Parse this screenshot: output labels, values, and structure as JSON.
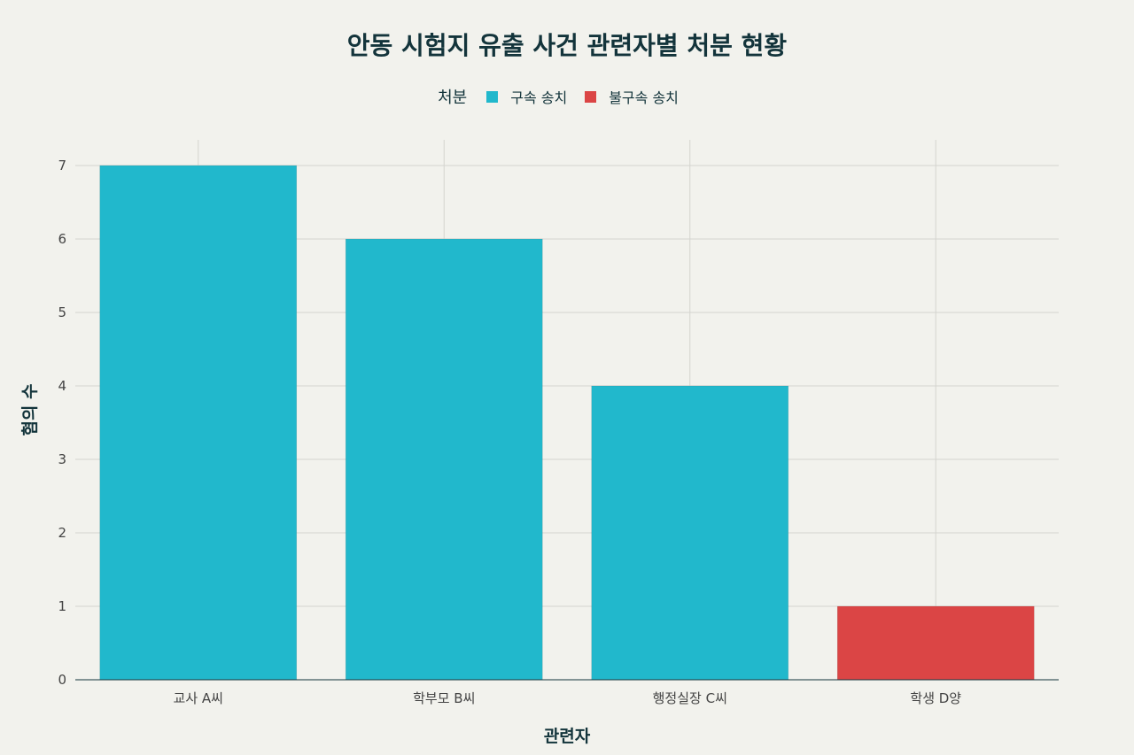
{
  "chart_data": {
    "type": "bar",
    "title": "안동 시험지 유출 사건 관련자별 처분 현황",
    "xlabel": "관련자",
    "ylabel": "혐의 수",
    "categories": [
      "교사 A씨",
      "학부모 B씨",
      "행정실장 C씨",
      "학생 D양"
    ],
    "values": [
      7,
      6,
      4,
      1
    ],
    "bar_groups": [
      "구속 송치",
      "구속 송치",
      "구속 송치",
      "불구속 송치"
    ],
    "ylim": [
      0,
      7.35
    ],
    "yticks": [
      0,
      1,
      2,
      3,
      4,
      5,
      6,
      7
    ],
    "grid": true,
    "legend": {
      "title": "처분",
      "placement": "top-center",
      "entries": [
        {
          "name": "구속 송치",
          "color": "#21b8cc"
        },
        {
          "name": "불구속 송치",
          "color": "#db4545"
        }
      ]
    }
  }
}
